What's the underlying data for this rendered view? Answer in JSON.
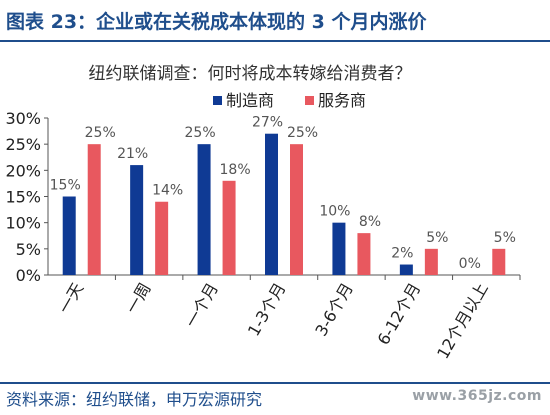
{
  "header": {
    "title": "图表 23：企业或在关税成本体现的 3 个月内涨价"
  },
  "chart_data": {
    "type": "bar",
    "title": "纽约联储调查：何时将成本转嫁给消费者？",
    "categories": [
      "一天",
      "一周",
      "一个月",
      "1-3个月",
      "3-6个月",
      "6-12个月",
      "12个月以上"
    ],
    "series": [
      {
        "name": "制造商",
        "values": [
          15,
          21,
          25,
          27,
          10,
          2,
          0
        ],
        "color": "#0f3a94"
      },
      {
        "name": "服务商",
        "values": [
          25,
          14,
          18,
          25,
          8,
          5,
          5
        ],
        "color": "#e8585f"
      }
    ],
    "data_labels": {
      "制造商": [
        "15%",
        "21%",
        "25%",
        "27%",
        "10%",
        "2%",
        "0%"
      ],
      "服务商": [
        "25%",
        "14%",
        "18%",
        "25%",
        "8%",
        "5%",
        "5%"
      ]
    },
    "ylim": [
      0,
      30
    ],
    "yticks": [
      "0%",
      "5%",
      "10%",
      "15%",
      "20%",
      "25%",
      "30%"
    ],
    "legend_position": "top-right",
    "grid": false
  },
  "footer": {
    "source": "资料来源：纽约联储，申万宏源研究",
    "watermark": "www.365jz.com"
  }
}
